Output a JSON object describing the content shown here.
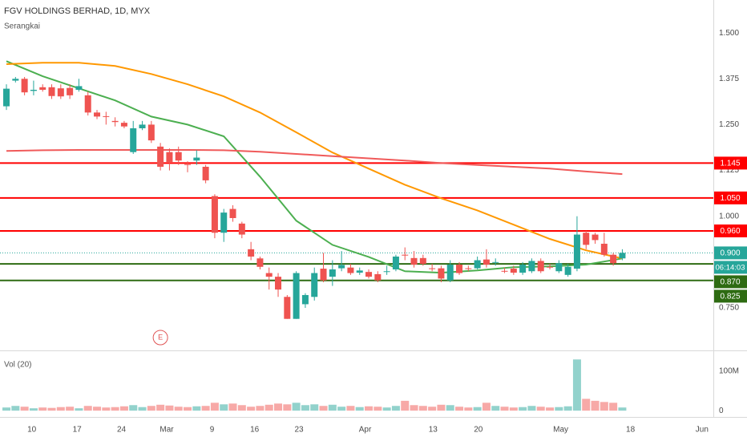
{
  "chart_data": {
    "type": "candlestick",
    "title": "FGV HOLDINGS BERHAD, 1D, MYX",
    "subtitle": "Serangkai",
    "xlim": [
      -0.71,
      78.05
    ],
    "xticks": [
      {
        "value": 2.8,
        "label": "10"
      },
      {
        "value": 7.8,
        "label": "17"
      },
      {
        "value": 12.7,
        "label": "24"
      },
      {
        "value": 17.7,
        "label": "Mar"
      },
      {
        "value": 22.7,
        "label": "9"
      },
      {
        "value": 27.4,
        "label": "16"
      },
      {
        "value": 32.3,
        "label": "23"
      },
      {
        "value": 39.6,
        "label": "Apr"
      },
      {
        "value": 47.1,
        "label": "13"
      },
      {
        "value": 52.1,
        "label": "20"
      },
      {
        "value": 61.2,
        "label": "May"
      },
      {
        "value": 68.9,
        "label": "18"
      },
      {
        "value": 76.8,
        "label": "Jun"
      }
    ],
    "ylim": [
      0.634,
      1.59
    ],
    "yticks": [
      {
        "value": 1.5,
        "label": "1.500"
      },
      {
        "value": 1.375,
        "label": "1.375"
      },
      {
        "value": 1.25,
        "label": "1.250"
      },
      {
        "value": 1.125,
        "label": "1.125"
      },
      {
        "value": 1.0,
        "label": "1.000"
      },
      {
        "value": 0.75,
        "label": "0.750"
      }
    ],
    "up_color": "#26a69a",
    "down_color": "#ef5350",
    "open": [
      1.3,
      1.37,
      1.375,
      1.342,
      1.352,
      1.352,
      1.349,
      1.35,
      1.345,
      1.33,
      1.283,
      1.273,
      1.26,
      1.255,
      1.175,
      1.24,
      1.25,
      1.19,
      1.175,
      1.175,
      1.142,
      1.152,
      1.135,
      1.055,
      0.955,
      1.02,
      0.98,
      0.91,
      0.885,
      0.845,
      0.835,
      0.78,
      0.72,
      0.76,
      0.78,
      0.857,
      0.835,
      0.858,
      0.86,
      0.846,
      0.848,
      0.842,
      0.85,
      0.855,
      0.895,
      0.886,
      0.886,
      0.858,
      0.858,
      0.825,
      0.868,
      0.858,
      0.858,
      0.882,
      0.874,
      0.851,
      0.857,
      0.846,
      0.85,
      0.878,
      0.862,
      0.85,
      0.84,
      0.857,
      0.955,
      0.95,
      0.925,
      0.895,
      0.885
    ],
    "high": [
      1.36,
      1.38,
      1.38,
      1.37,
      1.36,
      1.36,
      1.36,
      1.36,
      1.375,
      1.34,
      1.29,
      1.285,
      1.27,
      1.26,
      1.26,
      1.26,
      1.26,
      1.2,
      1.185,
      1.19,
      1.15,
      1.18,
      1.14,
      1.06,
      1.02,
      1.03,
      0.985,
      0.93,
      0.89,
      0.86,
      0.845,
      0.785,
      0.85,
      0.79,
      0.86,
      0.9,
      0.88,
      0.905,
      0.87,
      0.86,
      0.855,
      0.85,
      0.865,
      0.895,
      0.915,
      0.905,
      0.895,
      0.87,
      0.865,
      0.88,
      0.875,
      0.865,
      0.89,
      0.91,
      0.885,
      0.86,
      0.865,
      0.875,
      0.885,
      0.885,
      0.87,
      0.88,
      0.87,
      1.0,
      0.96,
      0.955,
      0.955,
      0.9,
      0.91
    ],
    "low": [
      1.29,
      1.365,
      1.33,
      1.33,
      1.34,
      1.32,
      1.32,
      1.32,
      1.34,
      1.275,
      1.265,
      1.25,
      1.245,
      1.24,
      1.17,
      1.235,
      1.2,
      1.125,
      1.125,
      1.14,
      1.12,
      1.14,
      1.09,
      0.94,
      0.93,
      0.985,
      0.94,
      0.88,
      0.855,
      0.8,
      0.78,
      0.72,
      0.72,
      0.75,
      0.77,
      0.82,
      0.81,
      0.85,
      0.84,
      0.84,
      0.83,
      0.82,
      0.84,
      0.85,
      0.88,
      0.86,
      0.865,
      0.85,
      0.82,
      0.82,
      0.84,
      0.85,
      0.855,
      0.86,
      0.865,
      0.845,
      0.84,
      0.84,
      0.845,
      0.845,
      0.855,
      0.845,
      0.835,
      0.85,
      0.91,
      0.925,
      0.89,
      0.865,
      0.88
    ],
    "close": [
      1.348,
      1.375,
      1.338,
      1.345,
      1.345,
      1.328,
      1.327,
      1.33,
      1.355,
      1.283,
      1.272,
      1.272,
      1.257,
      1.245,
      1.24,
      1.25,
      1.207,
      1.135,
      1.148,
      1.152,
      1.141,
      1.16,
      1.098,
      0.955,
      1.01,
      0.995,
      0.95,
      0.89,
      0.862,
      0.835,
      0.8,
      0.72,
      0.845,
      0.785,
      0.845,
      0.825,
      0.855,
      0.867,
      0.845,
      0.852,
      0.835,
      0.825,
      0.85,
      0.89,
      0.893,
      0.868,
      0.87,
      0.856,
      0.83,
      0.868,
      0.845,
      0.857,
      0.88,
      0.868,
      0.875,
      0.85,
      0.846,
      0.868,
      0.878,
      0.85,
      0.861,
      0.872,
      0.862,
      0.95,
      0.922,
      0.935,
      0.895,
      0.872,
      0.9
    ],
    "moving_averages": [
      {
        "color": "#4caf50",
        "x": [
          0,
          4,
          8,
          12,
          16,
          20,
          24,
          28,
          32,
          36,
          40,
          44,
          48,
          52,
          56,
          60,
          64,
          68
        ],
        "values": [
          1.423,
          1.382,
          1.349,
          1.316,
          1.272,
          1.25,
          1.218,
          1.108,
          0.988,
          0.922,
          0.889,
          0.85,
          0.846,
          0.852,
          0.861,
          0.863,
          0.868,
          0.885
        ]
      },
      {
        "color": "#ff9800",
        "x": [
          0,
          4,
          8,
          12,
          16,
          20,
          24,
          28,
          32,
          36,
          40,
          44,
          48,
          52,
          56,
          60,
          64,
          68
        ],
        "values": [
          1.415,
          1.419,
          1.419,
          1.41,
          1.388,
          1.36,
          1.327,
          1.283,
          1.229,
          1.174,
          1.13,
          1.086,
          1.049,
          1.016,
          0.977,
          0.938,
          0.907,
          0.885
        ]
      },
      {
        "color": "#f05a5a",
        "x": [
          0,
          4,
          8,
          12,
          16,
          20,
          24,
          28,
          32,
          36,
          40,
          44,
          48,
          52,
          56,
          60,
          64,
          68
        ],
        "values": [
          1.178,
          1.18,
          1.181,
          1.181,
          1.181,
          1.181,
          1.18,
          1.176,
          1.17,
          1.164,
          1.158,
          1.152,
          1.145,
          1.14,
          1.135,
          1.13,
          1.122,
          1.115
        ]
      }
    ],
    "levels": [
      {
        "value": 1.145,
        "label": "1.145",
        "color": "#ff0000"
      },
      {
        "value": 1.05,
        "label": "1.050",
        "color": "#ff0000"
      },
      {
        "value": 0.96,
        "label": "0.960",
        "color": "#ff0000"
      },
      {
        "value": 0.87,
        "label": "0.870",
        "color": "#2e6b12"
      },
      {
        "value": 0.825,
        "label": "0.825",
        "color": "#2e6b12"
      }
    ],
    "last_price": {
      "value": 0.9,
      "label": "0.900",
      "countdown": "06:14:03",
      "color": "#26a69a"
    },
    "earnings": {
      "x": 17,
      "label": "E",
      "color": "#e05555"
    },
    "volume": {
      "title": "Vol (20)",
      "ylim": [
        -16,
        153
      ],
      "yticks": [
        {
          "value": 100,
          "label": "100M"
        },
        0
      ],
      "values": [
        8,
        12,
        10,
        6,
        8,
        7,
        9,
        10,
        6,
        12,
        10,
        8,
        9,
        11,
        14,
        9,
        12,
        15,
        13,
        10,
        9,
        11,
        12,
        20,
        16,
        18,
        14,
        10,
        12,
        15,
        18,
        16,
        20,
        14,
        16,
        12,
        15,
        10,
        12,
        9,
        11,
        10,
        8,
        12,
        25,
        14,
        12,
        10,
        15,
        14,
        10,
        8,
        9,
        20,
        12,
        10,
        8,
        9,
        12,
        10,
        8,
        9,
        11,
        130,
        30,
        25,
        22,
        20,
        8
      ]
    }
  }
}
